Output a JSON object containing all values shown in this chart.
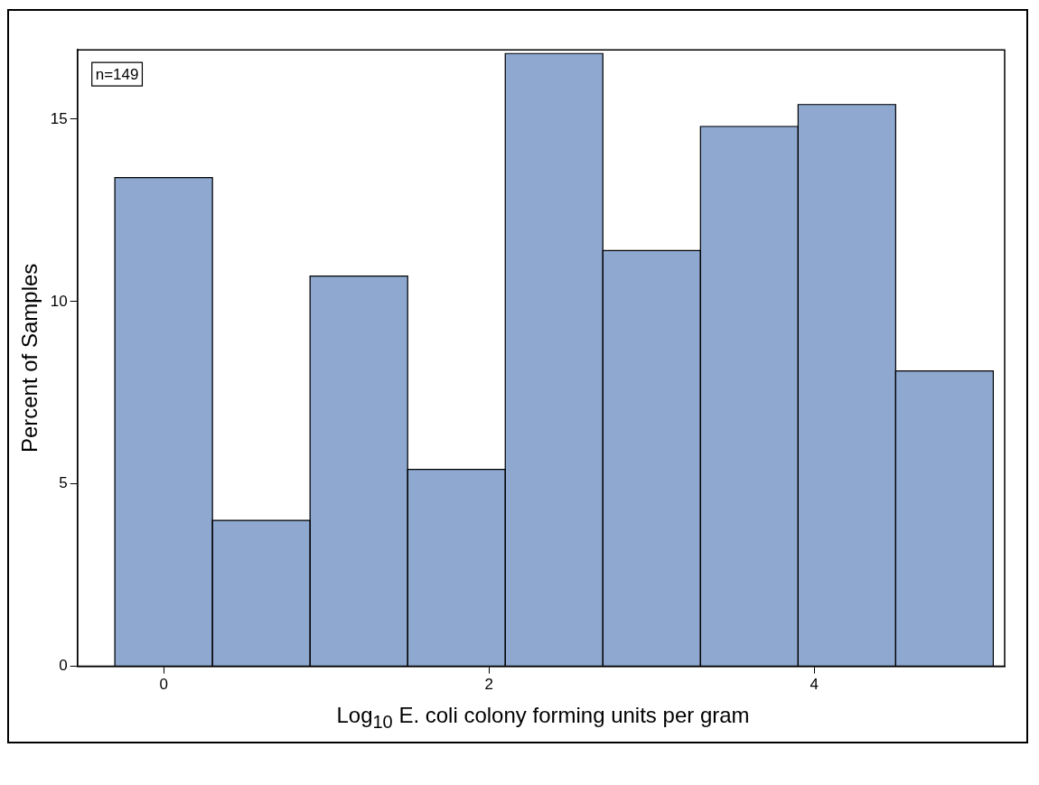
{
  "chart_data": {
    "type": "histogram",
    "xlabel": "Log$_{10}$ E. coli colony forming units per gram",
    "ylabel": "Percent of Samples",
    "bins": [
      -0.3,
      0.3,
      0.9,
      1.5,
      2.1,
      2.7,
      3.3,
      3.9,
      4.5,
      5.1
    ],
    "values": [
      13.4,
      4.0,
      10.7,
      5.4,
      16.8,
      11.4,
      14.8,
      15.4,
      8.1
    ],
    "color": "#8ea8d0",
    "xlim": [
      -0.53,
      5.17
    ],
    "xticks": [
      0,
      2,
      4
    ],
    "ylim": [
      0,
      16.9
    ],
    "yticks": [
      0,
      5,
      10,
      15
    ],
    "grid": false,
    "annotations": [
      "n=149"
    ]
  }
}
